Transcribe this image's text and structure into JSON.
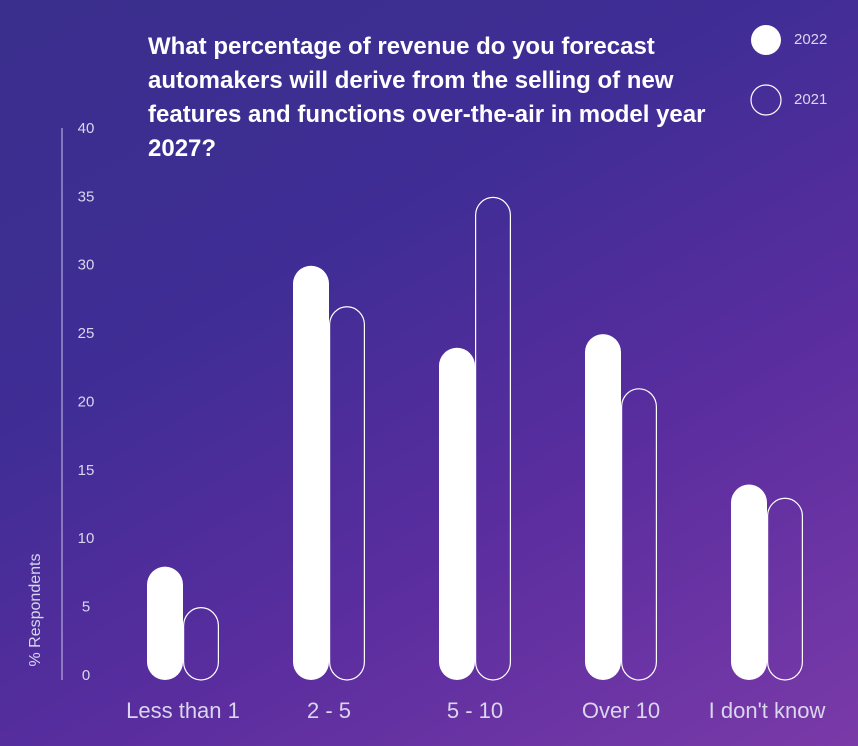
{
  "chart_data": {
    "type": "bar",
    "title": "What percentage of revenue do you forecast automakers will derive from the selling of new features and functions over-the-air in model year 2027?",
    "y_label": "% Respondents",
    "categories": [
      "Less than 1",
      "2 - 5",
      "5 - 10",
      "Over 10",
      "I don't know"
    ],
    "series": [
      {
        "name": "2022",
        "color": "#ffffff",
        "style": "filled",
        "values": [
          8,
          30,
          24,
          25,
          14
        ]
      },
      {
        "name": "2021",
        "color": "#ffffff",
        "style": "outline",
        "values": [
          5,
          27,
          35,
          21,
          13
        ]
      }
    ],
    "ylim": [
      0,
      40
    ],
    "yticks": [
      0,
      5,
      10,
      15,
      20,
      25,
      30,
      35,
      40
    ],
    "grid": false
  }
}
